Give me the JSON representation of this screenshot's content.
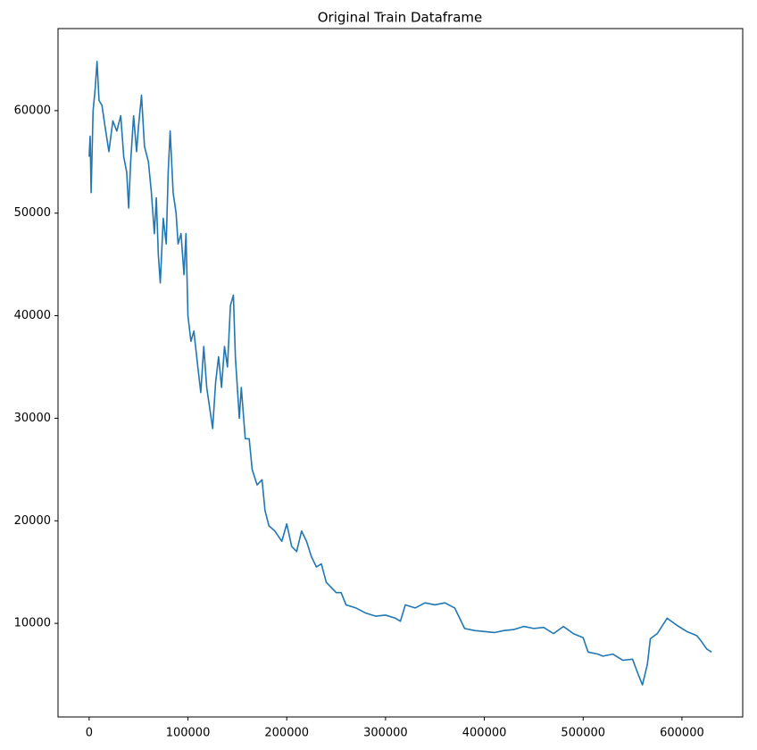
{
  "chart_data": {
    "type": "line",
    "title": "Original Train Dataframe",
    "xlim": [
      -31500,
      661500
    ],
    "ylim": [
      870,
      68000
    ],
    "xticks": [
      0,
      100000,
      200000,
      300000,
      400000,
      500000,
      600000
    ],
    "yticks": [
      10000,
      20000,
      30000,
      40000,
      50000,
      60000
    ],
    "grid": false,
    "series": [
      {
        "color": "#1f77b4",
        "x": [
          0,
          1000,
          2000,
          4000,
          6000,
          8000,
          10000,
          13000,
          16000,
          20000,
          24000,
          28000,
          32000,
          35000,
          38000,
          40000,
          42000,
          45000,
          48000,
          50000,
          53000,
          56000,
          60000,
          63000,
          66000,
          68000,
          70000,
          72000,
          75000,
          78000,
          80000,
          82000,
          85000,
          88000,
          90000,
          93000,
          96000,
          98000,
          100000,
          103000,
          106000,
          110000,
          113000,
          116000,
          119000,
          122000,
          125000,
          128000,
          131000,
          134000,
          137000,
          140000,
          143000,
          146000,
          148000,
          150000,
          152000,
          154000,
          158000,
          162000,
          165000,
          170000,
          175000,
          178000,
          182000,
          188000,
          195000,
          200000,
          205000,
          210000,
          215000,
          220000,
          225000,
          230000,
          235000,
          240000,
          245000,
          250000,
          255000,
          260000,
          270000,
          280000,
          290000,
          300000,
          310000,
          315000,
          320000,
          330000,
          340000,
          350000,
          360000,
          370000,
          375000,
          380000,
          390000,
          400000,
          410000,
          420000,
          430000,
          440000,
          450000,
          460000,
          470000,
          480000,
          490000,
          500000,
          505000,
          515000,
          520000,
          530000,
          540000,
          550000,
          555000,
          560000,
          565000,
          568000,
          575000,
          585000,
          595000,
          605000,
          615000,
          620000,
          625000,
          630000
        ],
        "values": [
          55500,
          57500,
          52000,
          60000,
          62000,
          64800,
          61000,
          60500,
          58500,
          56000,
          59000,
          58000,
          59500,
          55500,
          54000,
          50500,
          55000,
          59500,
          56000,
          58500,
          61500,
          56500,
          55000,
          52000,
          48000,
          51500,
          46000,
          43200,
          49500,
          47000,
          54000,
          58000,
          52000,
          50000,
          47000,
          48000,
          44000,
          48000,
          40000,
          37500,
          38500,
          35000,
          32500,
          37000,
          33000,
          31000,
          29000,
          33500,
          36000,
          33000,
          37000,
          35000,
          41000,
          42000,
          36000,
          33000,
          30000,
          33000,
          28000,
          28000,
          25000,
          23500,
          24000,
          21000,
          19500,
          19000,
          18000,
          19700,
          17500,
          17000,
          19000,
          18000,
          16500,
          15500,
          15800,
          14000,
          13500,
          13000,
          13000,
          11800,
          11500,
          11000,
          10700,
          10800,
          10500,
          10200,
          11800,
          11500,
          12000,
          11800,
          12000,
          11500,
          10500,
          9500,
          9300,
          9200,
          9100,
          9300,
          9400,
          9700,
          9500,
          9600,
          9000,
          9700,
          9000,
          8600,
          7200,
          7000,
          6800,
          7000,
          6400,
          6500,
          5200,
          4000,
          6000,
          8500,
          9000,
          10500,
          9800,
          9200,
          8800,
          8200,
          7500,
          7200
        ]
      }
    ]
  }
}
